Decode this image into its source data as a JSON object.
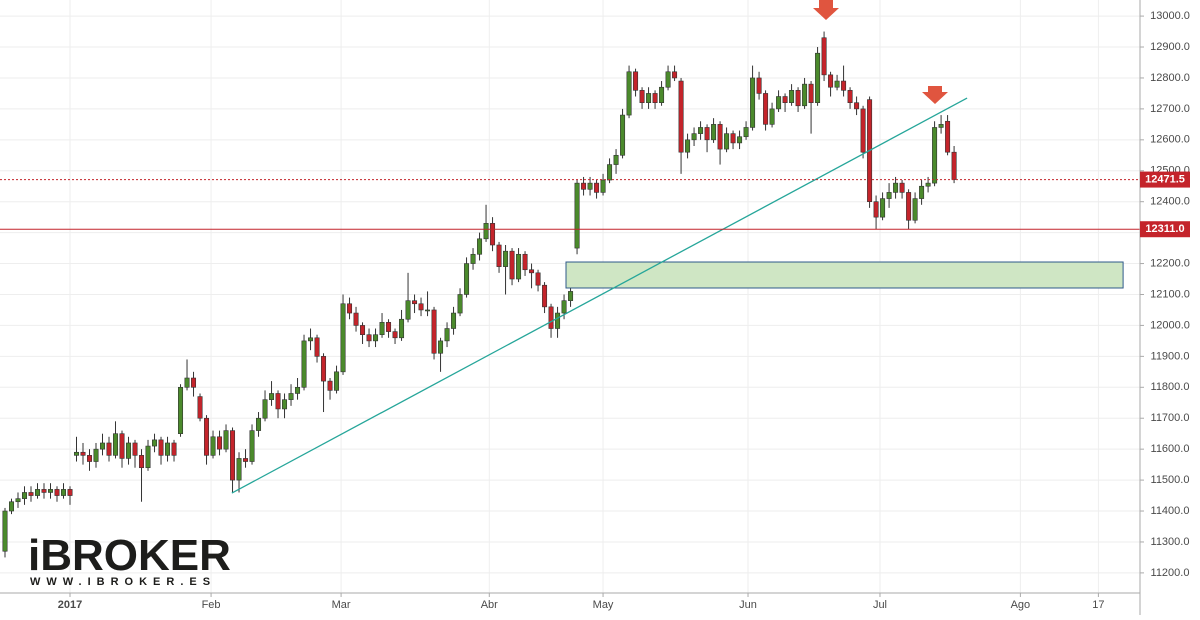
{
  "chart_data": {
    "type": "candlestick",
    "candles": [
      [
        11270,
        11410,
        11250,
        11400
      ],
      [
        11400,
        11440,
        11390,
        11430
      ],
      [
        11430,
        11460,
        11410,
        11440
      ],
      [
        11440,
        11480,
        11420,
        11460
      ],
      [
        11460,
        11480,
        11430,
        11450
      ],
      [
        11450,
        11490,
        11440,
        11470
      ],
      [
        11470,
        11490,
        11440,
        11460
      ],
      [
        11460,
        11490,
        11440,
        11470
      ],
      [
        11470,
        11480,
        11430,
        11450
      ],
      [
        11450,
        11490,
        11440,
        11470
      ],
      [
        11470,
        11480,
        11420,
        11450
      ],
      [
        11580,
        11640,
        11560,
        11590
      ],
      [
        11590,
        11620,
        11550,
        11580
      ],
      [
        11580,
        11600,
        11530,
        11560
      ],
      [
        11560,
        11620,
        11540,
        11600
      ],
      [
        11600,
        11650,
        11580,
        11620
      ],
      [
        11620,
        11640,
        11560,
        11580
      ],
      [
        11580,
        11690,
        11570,
        11650
      ],
      [
        11650,
        11660,
        11540,
        11570
      ],
      [
        11570,
        11640,
        11550,
        11620
      ],
      [
        11620,
        11630,
        11540,
        11580
      ],
      [
        11580,
        11600,
        11430,
        11540
      ],
      [
        11540,
        11630,
        11530,
        11610
      ],
      [
        11610,
        11650,
        11590,
        11630
      ],
      [
        11630,
        11640,
        11550,
        11580
      ],
      [
        11580,
        11640,
        11560,
        11620
      ],
      [
        11620,
        11630,
        11560,
        11580
      ],
      [
        11650,
        11810,
        11640,
        11800
      ],
      [
        11800,
        11890,
        11790,
        11830
      ],
      [
        11830,
        11850,
        11770,
        11800
      ],
      [
        11770,
        11780,
        11690,
        11700
      ],
      [
        11700,
        11710,
        11550,
        11580
      ],
      [
        11580,
        11660,
        11570,
        11640
      ],
      [
        11640,
        11660,
        11580,
        11600
      ],
      [
        11600,
        11680,
        11590,
        11660
      ],
      [
        11660,
        11670,
        11460,
        11500
      ],
      [
        11500,
        11590,
        11460,
        11570
      ],
      [
        11570,
        11600,
        11540,
        11560
      ],
      [
        11560,
        11680,
        11550,
        11660
      ],
      [
        11660,
        11720,
        11640,
        11700
      ],
      [
        11700,
        11790,
        11690,
        11760
      ],
      [
        11760,
        11820,
        11740,
        11780
      ],
      [
        11780,
        11790,
        11700,
        11730
      ],
      [
        11730,
        11780,
        11700,
        11760
      ],
      [
        11760,
        11810,
        11740,
        11780
      ],
      [
        11780,
        11830,
        11760,
        11800
      ],
      [
        11800,
        11970,
        11790,
        11950
      ],
      [
        11950,
        11990,
        11920,
        11960
      ],
      [
        11960,
        11970,
        11880,
        11900
      ],
      [
        11900,
        11910,
        11720,
        11820
      ],
      [
        11820,
        11830,
        11760,
        11790
      ],
      [
        11790,
        11870,
        11780,
        11850
      ],
      [
        11850,
        12100,
        11840,
        12070
      ],
      [
        12070,
        12090,
        12020,
        12040
      ],
      [
        12040,
        12060,
        11980,
        12000
      ],
      [
        12000,
        12010,
        11940,
        11970
      ],
      [
        11970,
        11990,
        11930,
        11950
      ],
      [
        11950,
        11990,
        11930,
        11970
      ],
      [
        11970,
        12040,
        11960,
        12010
      ],
      [
        12010,
        12020,
        11960,
        11980
      ],
      [
        11980,
        11990,
        11940,
        11960
      ],
      [
        11960,
        12050,
        11950,
        12020
      ],
      [
        12020,
        12170,
        12010,
        12080
      ],
      [
        12080,
        12100,
        12040,
        12070
      ],
      [
        12070,
        12090,
        12030,
        12050
      ],
      [
        12050,
        12110,
        12030,
        12050
      ],
      [
        12050,
        12060,
        11890,
        11910
      ],
      [
        11910,
        11960,
        11850,
        11950
      ],
      [
        11950,
        12010,
        11930,
        11990
      ],
      [
        11990,
        12060,
        11970,
        12040
      ],
      [
        12040,
        12120,
        12030,
        12100
      ],
      [
        12100,
        12220,
        12090,
        12200
      ],
      [
        12200,
        12250,
        12180,
        12230
      ],
      [
        12230,
        12300,
        12210,
        12280
      ],
      [
        12280,
        12390,
        12270,
        12330
      ],
      [
        12330,
        12350,
        12240,
        12260
      ],
      [
        12260,
        12270,
        12170,
        12190
      ],
      [
        12190,
        12260,
        12100,
        12240
      ],
      [
        12240,
        12250,
        12130,
        12150
      ],
      [
        12150,
        12250,
        12140,
        12230
      ],
      [
        12230,
        12240,
        12160,
        12180
      ],
      [
        12180,
        12200,
        12120,
        12170
      ],
      [
        12170,
        12180,
        12110,
        12130
      ],
      [
        12130,
        12140,
        12040,
        12060
      ],
      [
        12060,
        12070,
        11960,
        11990
      ],
      [
        11990,
        12060,
        11960,
        12040
      ],
      [
        12040,
        12100,
        12020,
        12080
      ],
      [
        12080,
        12120,
        12060,
        12110
      ],
      [
        12250,
        12470,
        12230,
        12460
      ],
      [
        12460,
        12480,
        12420,
        12440
      ],
      [
        12440,
        12480,
        12420,
        12460
      ],
      [
        12460,
        12470,
        12410,
        12430
      ],
      [
        12430,
        12490,
        12420,
        12470
      ],
      [
        12470,
        12540,
        12460,
        12520
      ],
      [
        12520,
        12570,
        12490,
        12550
      ],
      [
        12550,
        12700,
        12540,
        12680
      ],
      [
        12680,
        12840,
        12670,
        12820
      ],
      [
        12820,
        12830,
        12740,
        12760
      ],
      [
        12760,
        12770,
        12700,
        12720
      ],
      [
        12720,
        12770,
        12700,
        12750
      ],
      [
        12750,
        12760,
        12700,
        12720
      ],
      [
        12720,
        12790,
        12710,
        12770
      ],
      [
        12770,
        12840,
        12760,
        12820
      ],
      [
        12820,
        12840,
        12790,
        12800
      ],
      [
        12790,
        12800,
        12490,
        12560
      ],
      [
        12560,
        12620,
        12540,
        12600
      ],
      [
        12600,
        12640,
        12580,
        12620
      ],
      [
        12620,
        12660,
        12600,
        12640
      ],
      [
        12640,
        12650,
        12560,
        12600
      ],
      [
        12600,
        12670,
        12590,
        12650
      ],
      [
        12650,
        12660,
        12520,
        12570
      ],
      [
        12570,
        12640,
        12560,
        12620
      ],
      [
        12620,
        12630,
        12570,
        12590
      ],
      [
        12590,
        12630,
        12570,
        12610
      ],
      [
        12610,
        12660,
        12600,
        12640
      ],
      [
        12640,
        12840,
        12630,
        12800
      ],
      [
        12800,
        12820,
        12730,
        12750
      ],
      [
        12750,
        12760,
        12630,
        12650
      ],
      [
        12650,
        12720,
        12640,
        12700
      ],
      [
        12700,
        12760,
        12690,
        12740
      ],
      [
        12740,
        12750,
        12690,
        12720
      ],
      [
        12720,
        12780,
        12710,
        12760
      ],
      [
        12760,
        12770,
        12690,
        12710
      ],
      [
        12710,
        12800,
        12700,
        12780
      ],
      [
        12780,
        12790,
        12620,
        12720
      ],
      [
        12720,
        12900,
        12710,
        12880
      ],
      [
        12930,
        12950,
        12790,
        12810
      ],
      [
        12810,
        12820,
        12740,
        12770
      ],
      [
        12770,
        12810,
        12760,
        12790
      ],
      [
        12790,
        12840,
        12740,
        12760
      ],
      [
        12760,
        12770,
        12700,
        12720
      ],
      [
        12720,
        12740,
        12680,
        12700
      ],
      [
        12700,
        12710,
        12540,
        12560
      ],
      [
        12730,
        12740,
        12380,
        12400
      ],
      [
        12400,
        12420,
        12310,
        12350
      ],
      [
        12350,
        12430,
        12340,
        12410
      ],
      [
        12410,
        12460,
        12380,
        12430
      ],
      [
        12430,
        12480,
        12410,
        12460
      ],
      [
        12460,
        12470,
        12410,
        12430
      ],
      [
        12430,
        12440,
        12310,
        12340
      ],
      [
        12340,
        12430,
        12330,
        12410
      ],
      [
        12410,
        12470,
        12390,
        12450
      ],
      [
        12450,
        12480,
        12430,
        12460
      ],
      [
        12460,
        12660,
        12450,
        12640
      ],
      [
        12640,
        12680,
        12620,
        12650
      ],
      [
        12660,
        12680,
        12550,
        12560
      ],
      [
        12560,
        12580,
        12460,
        12471.5
      ]
    ],
    "up_color": "#4b8a2c",
    "down_color": "#c4242b",
    "xlim": [
      -0.77,
      174.6
    ],
    "xticks": [
      {
        "value": 10,
        "label": "2017"
      },
      {
        "value": 31.7,
        "label": "Feb"
      },
      {
        "value": 51.7,
        "label": "Mar"
      },
      {
        "value": 74.5,
        "label": "Abr"
      },
      {
        "value": 92,
        "label": "May"
      },
      {
        "value": 114.3,
        "label": "Jun"
      },
      {
        "value": 134.6,
        "label": "Jul"
      },
      {
        "value": 156.2,
        "label": "Ago"
      },
      {
        "value": 168.2,
        "label": "17"
      }
    ],
    "ylim": [
      11135,
      13052
    ],
    "yticks": [
      {
        "value": 11200,
        "label": "11200.0"
      },
      {
        "value": 11300,
        "label": "11300.0"
      },
      {
        "value": 11400,
        "label": "11400.0"
      },
      {
        "value": 11500,
        "label": "11500.0"
      },
      {
        "value": 11600,
        "label": "11600.0"
      },
      {
        "value": 11700,
        "label": "11700.0"
      },
      {
        "value": 11800,
        "label": "11800.0"
      },
      {
        "value": 11900,
        "label": "11900.0"
      },
      {
        "value": 12000,
        "label": "12000.0"
      },
      {
        "value": 12100,
        "label": "12100.0"
      },
      {
        "value": 12200,
        "label": "12200.0"
      },
      {
        "value": 12300,
        "label": "12300.0"
      },
      {
        "value": 12400,
        "label": "12400.0"
      },
      {
        "value": 12500,
        "label": "12500.0"
      },
      {
        "value": 12600,
        "label": "12600.0"
      },
      {
        "value": 12700,
        "label": "12700.0"
      },
      {
        "value": 12800,
        "label": "12800.0"
      },
      {
        "value": 12900,
        "label": "12900.0"
      },
      {
        "value": 13000,
        "label": "13000.0"
      }
    ],
    "grid": true,
    "price_lines": [
      {
        "value": 12471.5,
        "label": "12471.5",
        "style": "dotted"
      },
      {
        "value": 12311,
        "label": "12311.0",
        "style": "solid"
      }
    ],
    "trendline": {
      "x": [
        34.9,
        148
      ],
      "y": [
        11458,
        12735
      ],
      "color": "#26a69a"
    },
    "zone": {
      "x": [
        86.3,
        172
      ],
      "y": [
        12121,
        12205
      ],
      "color": "#cfe6c4"
    }
  },
  "logo": {
    "name": "iBROKER",
    "url": "WWW.IBROKER.ES"
  }
}
